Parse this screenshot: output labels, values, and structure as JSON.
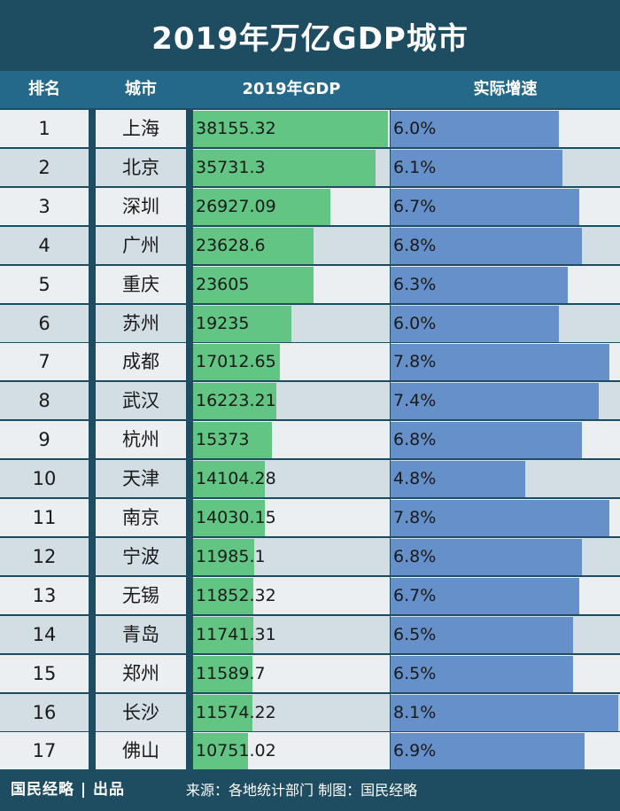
{
  "title": "2019年万亿GDP城市",
  "headers": {
    "rank": "排名",
    "city": "城市",
    "gdp": "2019年GDP",
    "growth": "实际增速"
  },
  "footer": {
    "brand": "国民经略 | 出品",
    "source": "来源：各地统计部门 制图：国民经略"
  },
  "colors": {
    "background": "#1e4d62",
    "header": "#24698a",
    "row_light": "#eceff1",
    "row_dark": "#d3dee4",
    "gdp_bar": "#62c584",
    "growth_bar": "#6590c9"
  },
  "chart_data": {
    "type": "table",
    "title": "2019年万亿GDP城市",
    "columns": [
      "排名",
      "城市",
      "2019年GDP",
      "实际增速"
    ],
    "rows": [
      {
        "rank": "1",
        "city": "上海",
        "gdp": 38155.32,
        "gdp_label": "38155.32",
        "growth": 6.0,
        "growth_label": "6.0%"
      },
      {
        "rank": "2",
        "city": "北京",
        "gdp": 35731.3,
        "gdp_label": "35731.3",
        "growth": 6.1,
        "growth_label": "6.1%"
      },
      {
        "rank": "3",
        "city": "深圳",
        "gdp": 26927.09,
        "gdp_label": "26927.09",
        "growth": 6.7,
        "growth_label": "6.7%"
      },
      {
        "rank": "4",
        "city": "广州",
        "gdp": 23628.6,
        "gdp_label": "23628.6",
        "growth": 6.8,
        "growth_label": "6.8%"
      },
      {
        "rank": "5",
        "city": "重庆",
        "gdp": 23605,
        "gdp_label": "23605",
        "growth": 6.3,
        "growth_label": "6.3%"
      },
      {
        "rank": "6",
        "city": "苏州",
        "gdp": 19235,
        "gdp_label": "19235",
        "growth": 6.0,
        "growth_label": "6.0%"
      },
      {
        "rank": "7",
        "city": "成都",
        "gdp": 17012.65,
        "gdp_label": "17012.65",
        "growth": 7.8,
        "growth_label": "7.8%"
      },
      {
        "rank": "8",
        "city": "武汉",
        "gdp": 16223.21,
        "gdp_label": "16223.21",
        "growth": 7.4,
        "growth_label": "7.4%"
      },
      {
        "rank": "9",
        "city": "杭州",
        "gdp": 15373,
        "gdp_label": "15373",
        "growth": 6.8,
        "growth_label": "6.8%"
      },
      {
        "rank": "10",
        "city": "天津",
        "gdp": 14104.28,
        "gdp_label": "14104.28",
        "growth": 4.8,
        "growth_label": "4.8%"
      },
      {
        "rank": "11",
        "city": "南京",
        "gdp": 14030.15,
        "gdp_label": "14030.15",
        "growth": 7.8,
        "growth_label": "7.8%"
      },
      {
        "rank": "12",
        "city": "宁波",
        "gdp": 11985.1,
        "gdp_label": "11985.1",
        "growth": 6.8,
        "growth_label": "6.8%"
      },
      {
        "rank": "13",
        "city": "无锡",
        "gdp": 11852.32,
        "gdp_label": "11852.32",
        "growth": 6.7,
        "growth_label": "6.7%"
      },
      {
        "rank": "14",
        "city": "青岛",
        "gdp": 11741.31,
        "gdp_label": "11741.31",
        "growth": 6.5,
        "growth_label": "6.5%"
      },
      {
        "rank": "15",
        "city": "郑州",
        "gdp": 11589.7,
        "gdp_label": "11589.7",
        "growth": 6.5,
        "growth_label": "6.5%"
      },
      {
        "rank": "16",
        "city": "长沙",
        "gdp": 11574.22,
        "gdp_label": "11574.22",
        "growth": 8.1,
        "growth_label": "8.1%"
      },
      {
        "rank": "17",
        "city": "佛山",
        "gdp": 10751.02,
        "gdp_label": "10751.02",
        "growth": 6.9,
        "growth_label": "6.9%"
      }
    ]
  }
}
